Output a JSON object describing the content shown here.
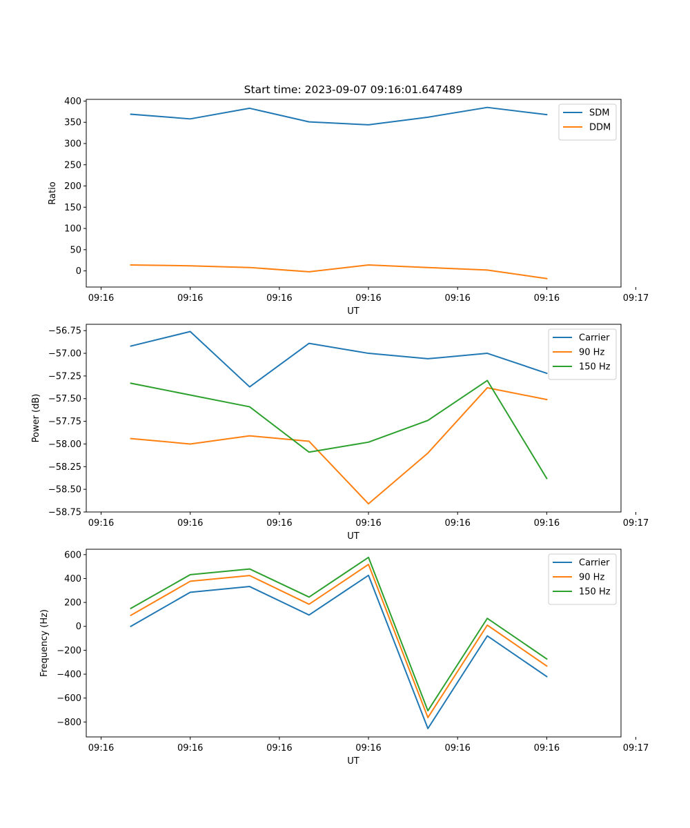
{
  "figure_title": "Start time: 2023-09-07 09:16:01.647489",
  "colors": {
    "c0": "#1f77b4",
    "c1": "#ff7f0e",
    "c2": "#2ca02c"
  },
  "chart_data": [
    {
      "type": "line",
      "ylabel": "Ratio",
      "xlabel": "UT",
      "x": [
        1,
        2,
        3,
        4,
        5,
        6,
        7,
        8
      ],
      "xlim": [
        0.25,
        9.25
      ],
      "xticks": [
        0.5,
        2,
        3.5,
        5,
        6.5,
        8,
        9.5
      ],
      "xtick_labels": [
        "09:16",
        "09:16",
        "09:16",
        "09:16",
        "09:16",
        "09:16",
        "09:17"
      ],
      "ylim": [
        -38,
        404
      ],
      "yticks": [
        400,
        350,
        300,
        250,
        200,
        150,
        100,
        50,
        0
      ],
      "ytick_labels": [
        "400",
        "350",
        "300",
        "250",
        "200",
        "150",
        "100",
        "50",
        "0"
      ],
      "legend_position": "top-right",
      "series": [
        {
          "name": "SDM",
          "color": "#1f77b4",
          "values": [
            369,
            358,
            383,
            351,
            344,
            362,
            385,
            368
          ]
        },
        {
          "name": "DDM",
          "color": "#ff7f0e",
          "values": [
            14,
            12,
            8,
            -2,
            14,
            8,
            2,
            -18
          ]
        }
      ]
    },
    {
      "type": "line",
      "ylabel": "Power (dB)",
      "xlabel": "UT",
      "x": [
        1,
        2,
        3,
        4,
        5,
        6,
        7,
        8
      ],
      "xlim": [
        0.25,
        9.25
      ],
      "xticks": [
        0.5,
        2,
        3.5,
        5,
        6.5,
        8,
        9.5
      ],
      "xtick_labels": [
        "09:16",
        "09:16",
        "09:16",
        "09:16",
        "09:16",
        "09:16",
        "09:17"
      ],
      "ylim": [
        -58.75,
        -56.68
      ],
      "yticks": [
        -56.75,
        -57.0,
        -57.25,
        -57.5,
        -57.75,
        -58.0,
        -58.25,
        -58.5,
        -58.75
      ],
      "ytick_labels": [
        "−56.75",
        "−57.00",
        "−57.25",
        "−57.50",
        "−57.75",
        "−58.00",
        "−58.25",
        "−58.50",
        "−58.75"
      ],
      "legend_position": "top-right",
      "series": [
        {
          "name": "Carrier",
          "color": "#1f77b4",
          "values": [
            -56.92,
            -56.76,
            -57.37,
            -56.89,
            -57.0,
            -57.06,
            -57.0,
            -57.22
          ]
        },
        {
          "name": "90 Hz",
          "color": "#ff7f0e",
          "values": [
            -57.94,
            -58.0,
            -57.91,
            -57.97,
            -58.66,
            -58.1,
            -57.38,
            -57.51
          ]
        },
        {
          "name": "150 Hz",
          "color": "#2ca02c",
          "values": [
            -57.33,
            -57.46,
            -57.59,
            -58.09,
            -57.98,
            -57.74,
            -57.3,
            -58.38
          ]
        }
      ]
    },
    {
      "type": "line",
      "ylabel": "Frequency (Hz)",
      "xlabel": "UT",
      "x": [
        1,
        2,
        3,
        4,
        5,
        6,
        7,
        8
      ],
      "xlim": [
        0.25,
        9.25
      ],
      "xticks": [
        0.5,
        2,
        3.5,
        5,
        6.5,
        8,
        9.5
      ],
      "xtick_labels": [
        "09:16",
        "09:16",
        "09:16",
        "09:16",
        "09:16",
        "09:16",
        "09:17"
      ],
      "ylim": [
        -925,
        645
      ],
      "yticks": [
        600,
        400,
        200,
        0,
        -200,
        -400,
        -600,
        -800
      ],
      "ytick_labels": [
        "600",
        "400",
        "200",
        "0",
        "−200",
        "−400",
        "−600",
        "−800"
      ],
      "legend_position": "top-right",
      "series": [
        {
          "name": "Carrier",
          "color": "#1f77b4",
          "values": [
            0,
            285,
            333,
            95,
            427,
            -855,
            -80,
            -420
          ]
        },
        {
          "name": "90 Hz",
          "color": "#ff7f0e",
          "values": [
            92,
            377,
            425,
            185,
            518,
            -763,
            10,
            -332
          ]
        },
        {
          "name": "150 Hz",
          "color": "#2ca02c",
          "values": [
            150,
            432,
            480,
            245,
            577,
            -706,
            67,
            -273
          ]
        }
      ]
    }
  ]
}
